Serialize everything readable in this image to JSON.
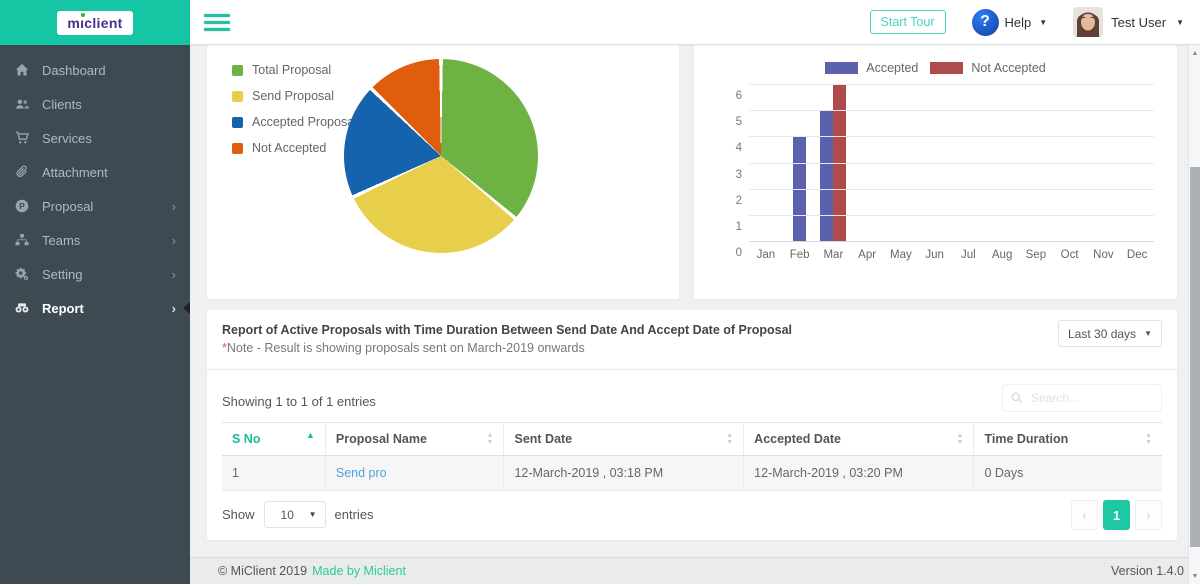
{
  "logo": {
    "part1": "m",
    "part2": "client",
    "name": "miclient"
  },
  "topbar": {
    "start_tour_label": "Start Tour",
    "help_label": "Help",
    "help_icon_glyph": "?",
    "user_name": "Test User"
  },
  "sidebar": {
    "items": [
      {
        "id": "dashboard",
        "label": "Dashboard",
        "icon": "home-icon",
        "has_submenu": false,
        "active": false
      },
      {
        "id": "clients",
        "label": "Clients",
        "icon": "users-icon",
        "has_submenu": false,
        "active": false
      },
      {
        "id": "services",
        "label": "Services",
        "icon": "cart-icon",
        "has_submenu": false,
        "active": false
      },
      {
        "id": "attachment",
        "label": "Attachment",
        "icon": "paperclip-icon",
        "has_submenu": false,
        "active": false
      },
      {
        "id": "proposal",
        "label": "Proposal",
        "icon": "proposal-icon",
        "has_submenu": true,
        "active": false
      },
      {
        "id": "teams",
        "label": "Teams",
        "icon": "sitemap-icon",
        "has_submenu": true,
        "active": false
      },
      {
        "id": "setting",
        "label": "Setting",
        "icon": "gears-icon",
        "has_submenu": true,
        "active": false
      },
      {
        "id": "report",
        "label": "Report",
        "icon": "binoculars-icon",
        "has_submenu": true,
        "active": true
      }
    ]
  },
  "chart_data": [
    {
      "type": "pie",
      "labels": [
        "Total Proposal",
        "Send Proposal",
        "Accepted Proposal",
        "Not Accepted"
      ],
      "values": [
        36,
        32,
        19,
        13
      ],
      "values_unit": "percent-estimated",
      "angles_deg": [
        130,
        115,
        69,
        46
      ],
      "colors": [
        "#6fb244",
        "#e8cf4b",
        "#1563ac",
        "#e05d0d"
      ],
      "legend_position": "left"
    },
    {
      "type": "bar",
      "categories": [
        "Jan",
        "Feb",
        "Mar",
        "Apr",
        "May",
        "Jun",
        "Jul",
        "Aug",
        "Sep",
        "Oct",
        "Nov",
        "Dec"
      ],
      "series": [
        {
          "name": "Accepted",
          "color": "#5c61ae",
          "values": [
            0,
            4,
            5,
            0,
            0,
            0,
            0,
            0,
            0,
            0,
            0,
            0
          ]
        },
        {
          "name": "Not Accepted",
          "color": "#b04b4b",
          "values": [
            0,
            0,
            6,
            0,
            0,
            0,
            0,
            0,
            0,
            0,
            0,
            0
          ]
        }
      ],
      "ylim": [
        0,
        6
      ],
      "yticks": [
        0,
        1,
        2,
        3,
        4,
        5,
        6
      ],
      "grid": true,
      "legend_position": "top"
    }
  ],
  "report": {
    "title": "Report of Active Proposals with Time Duration Between Send Date And Accept Date of Proposal",
    "note_star": "*",
    "note_text": "Note - Result is showing proposals sent on March-2019 onwards",
    "filter_value": "Last 30 days",
    "showing_text": "Showing 1 to 1 of 1 entries",
    "search_placeholder": "Search...",
    "table": {
      "headers": [
        {
          "label": "S No",
          "sort": "asc"
        },
        {
          "label": "Proposal Name",
          "sort": "both"
        },
        {
          "label": "Sent Date",
          "sort": "both"
        },
        {
          "label": "Accepted Date",
          "sort": "both"
        },
        {
          "label": "Time Duration",
          "sort": "both"
        }
      ],
      "col_widths": [
        "11%",
        "19%",
        "25.5%",
        "24.5%",
        "20%"
      ],
      "rows": [
        {
          "sno": "1",
          "proposal_name": "Send pro",
          "proposal_name_is_link": true,
          "sent_date": "12-March-2019 , 03:18 PM",
          "accepted_date": "12-March-2019 , 03:20 PM",
          "time_duration": "0 Days"
        }
      ]
    },
    "show_label": "Show",
    "page_size_value": "10",
    "entries_label": "entries",
    "pagination": {
      "prev": "‹",
      "page": "1",
      "next": "›"
    }
  },
  "footer": {
    "copyright": "© MiClient 2019",
    "made_by": "Made by Miclient",
    "version": "Version 1.4.0"
  },
  "colors": {
    "brand_teal": "#15c5a3",
    "sidebar_bg": "#3e4a52",
    "table_accent": "#1bbc9b",
    "pagination_active": "#1dc8a2",
    "link_blue": "#51a3d9"
  }
}
